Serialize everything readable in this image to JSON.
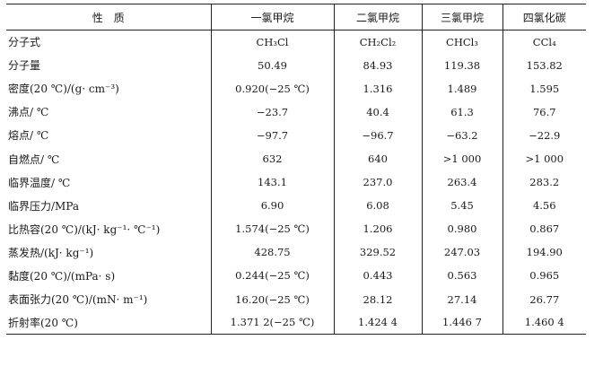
{
  "table": {
    "headers": [
      "性　质",
      "一氯甲烷",
      "二氯甲烷",
      "三氯甲烷",
      "四氯化碳"
    ],
    "rows": [
      [
        "分子式",
        "CH₃Cl",
        "CH₂Cl₂",
        "CHCl₃",
        "CCl₄"
      ],
      [
        "分子量",
        "50.49",
        "84.93",
        "119.38",
        "153.82"
      ],
      [
        "密度(20 ℃)/(g· cm⁻³)",
        "0.920(−25 ℃)",
        "1.316",
        "1.489",
        "1.595"
      ],
      [
        "沸点/ ℃",
        "−23.7",
        "40.4",
        "61.3",
        "76.7"
      ],
      [
        "熔点/ ℃",
        "−97.7",
        "−96.7",
        "−63.2",
        "−22.9"
      ],
      [
        "自燃点/ ℃",
        "632",
        "640",
        ">1 000",
        ">1 000"
      ],
      [
        "临界温度/ ℃",
        "143.1",
        "237.0",
        "263.4",
        "283.2"
      ],
      [
        "临界压力/MPa",
        "6.90",
        "6.08",
        "5.45",
        "4.56"
      ],
      [
        "比热容(20 ℃)/(kJ· kg⁻¹· ℃⁻¹)",
        "1.574(−25 ℃)",
        "1.206",
        "0.980",
        "0.867"
      ],
      [
        "蒸发热/(kJ· kg⁻¹)",
        "428.75",
        "329.52",
        "247.03",
        "194.90"
      ],
      [
        "黏度(20 ℃)/(mPa· s)",
        "0.244(−25 ℃)",
        "0.443",
        "0.563",
        "0.965"
      ],
      [
        "表面张力(20 ℃)/(mN· m⁻¹)",
        "16.20(−25 ℃)",
        "28.12",
        "27.14",
        "26.77"
      ],
      [
        "折射率(20 ℃)",
        "1.371 2(−25 ℃)",
        "1.424 4",
        "1.446 7",
        "1.460 4"
      ]
    ]
  }
}
